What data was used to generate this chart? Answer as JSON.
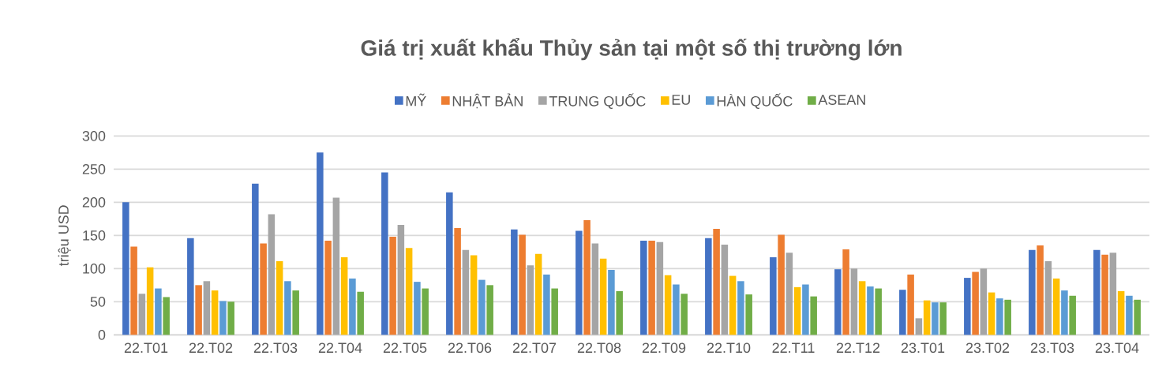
{
  "chart_data": {
    "type": "bar",
    "title": "Giá trị xuất khẩu Thủy sản tại một số thị trường lớn",
    "ylabel": "triệu USD",
    "categories": [
      "22.T01",
      "22.T02",
      "22.T03",
      "22.T04",
      "22.T05",
      "22.T06",
      "22.T07",
      "22.T08",
      "22.T09",
      "22.T10",
      "22.T11",
      "22.T12",
      "23.T01",
      "23.T02",
      "23.T03",
      "23.T04"
    ],
    "series": [
      {
        "name": "MỸ",
        "color": "#4472c4",
        "values": [
          200,
          146,
          228,
          275,
          245,
          215,
          159,
          157,
          142,
          146,
          117,
          99,
          68,
          86,
          128,
          128
        ]
      },
      {
        "name": "NHẬT BẢN",
        "color": "#ed7d31",
        "values": [
          133,
          75,
          138,
          142,
          148,
          161,
          151,
          173,
          142,
          160,
          151,
          129,
          91,
          95,
          135,
          121
        ]
      },
      {
        "name": "TRUNG QUỐC",
        "color": "#a5a5a5",
        "values": [
          62,
          81,
          182,
          207,
          166,
          128,
          105,
          138,
          140,
          136,
          124,
          100,
          25,
          100,
          111,
          124
        ]
      },
      {
        "name": "EU",
        "color": "#ffc000",
        "values": [
          102,
          67,
          111,
          117,
          131,
          120,
          122,
          115,
          90,
          89,
          72,
          81,
          52,
          64,
          85,
          66
        ]
      },
      {
        "name": "HÀN QUỐC",
        "color": "#5b9bd5",
        "values": [
          70,
          51,
          81,
          85,
          80,
          83,
          91,
          98,
          76,
          81,
          76,
          73,
          49,
          55,
          67,
          59
        ]
      },
      {
        "name": "ASEAN",
        "color": "#70ad47",
        "values": [
          57,
          50,
          67,
          65,
          70,
          75,
          70,
          66,
          62,
          61,
          58,
          70,
          49,
          53,
          59,
          53
        ]
      }
    ],
    "ylim": [
      0,
      300
    ],
    "yticks": [
      0,
      50,
      100,
      150,
      200,
      250,
      300
    ],
    "grid": "y",
    "legend": "top"
  }
}
